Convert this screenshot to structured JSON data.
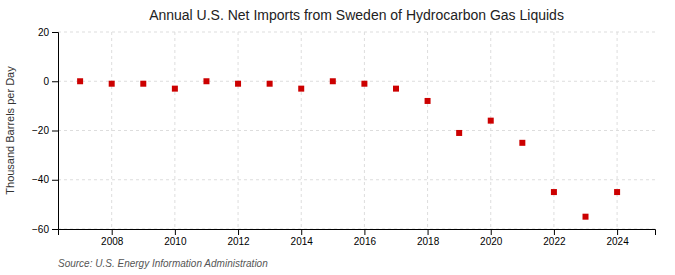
{
  "chart_data": {
    "type": "scatter",
    "title": "Annual U.S. Net Imports from Sweden of Hydrocarbon Gas Liquids",
    "ylabel": "Thousand Barrels per Day",
    "source": "Source: U.S. Energy Information Administration",
    "x": [
      2007,
      2008,
      2009,
      2010,
      2011,
      2012,
      2013,
      2014,
      2015,
      2016,
      2017,
      2018,
      2019,
      2020,
      2021,
      2022,
      2023,
      2024
    ],
    "values": [
      0,
      -1,
      -1,
      -3,
      0,
      -1,
      -1,
      -3,
      0,
      -1,
      -3,
      -8,
      -21,
      -16,
      -25,
      -45,
      -55,
      -45
    ],
    "color": "#cc0000",
    "marker": "square",
    "xlim": [
      2006.3,
      2025.2
    ],
    "xticks": [
      2008,
      2010,
      2012,
      2014,
      2016,
      2018,
      2020,
      2022,
      2024
    ],
    "ylim": [
      -60,
      20
    ],
    "yticks": [
      -60,
      -40,
      -20,
      0,
      20
    ],
    "grid": true
  }
}
